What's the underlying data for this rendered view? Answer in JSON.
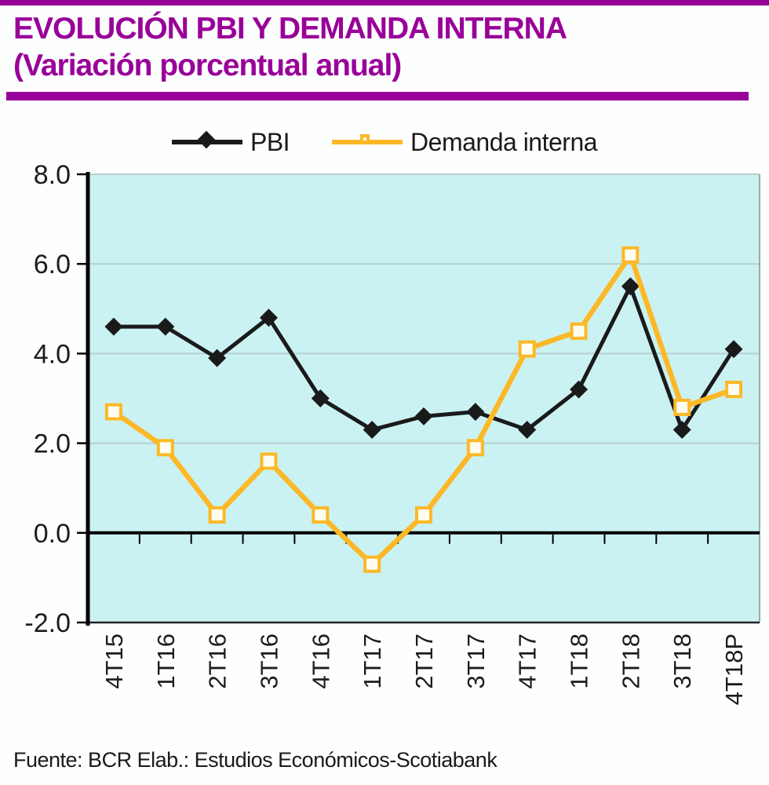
{
  "header": {
    "title_line1": "EVOLUCIÓN PBI Y DEMANDA INTERNA",
    "title_line2": "(Variación porcentual anual)"
  },
  "colors": {
    "accent_purple": "#990099",
    "pbi_line": "#1a1a1a",
    "demanda_line": "#FCB826",
    "plot_background": "#CBF2F2",
    "gridline": "#b6cfcf",
    "axis_black": "#000000",
    "marker_fill": "#FFFDF0",
    "plot_right_border": "#9aabab",
    "text_dark": "#1c1c1c"
  },
  "chart_data": {
    "type": "line",
    "title": "EVOLUCIÓN PBI Y DEMANDA INTERNA",
    "subtitle": "(Variación porcentual anual)",
    "categories": [
      "4T15",
      "1T16",
      "2T16",
      "3T16",
      "4T16",
      "1T17",
      "2T17",
      "3T17",
      "4T17",
      "1T18",
      "2T18",
      "3T18",
      "4T18P"
    ],
    "series": [
      {
        "name": "PBI",
        "color": "#1a1a1a",
        "marker": "diamond",
        "values": [
          4.6,
          4.6,
          3.9,
          4.8,
          3.0,
          2.3,
          2.6,
          2.7,
          2.3,
          3.2,
          5.5,
          2.3,
          4.1
        ]
      },
      {
        "name": "Demanda interna",
        "color": "#FCB826",
        "marker": "square-open",
        "values": [
          2.7,
          1.9,
          0.4,
          1.6,
          0.4,
          -0.7,
          0.4,
          1.9,
          4.1,
          4.5,
          6.2,
          2.8,
          3.2
        ]
      }
    ],
    "ylim": [
      -2.0,
      8.0
    ],
    "yticks": [
      8.0,
      6.0,
      4.0,
      2.0,
      0.0,
      -2.0
    ],
    "ytick_labels": [
      "8.0",
      "6.0",
      "4.0",
      "2.0",
      "0.0",
      "-2.0"
    ],
    "xlabel": "",
    "ylabel": "",
    "grid": true,
    "legend_position": "top",
    "x_labels_rotated_degrees": 90
  },
  "footer": {
    "source": "Fuente: BCR  Elab.: Estudios Económicos-Scotiabank"
  }
}
